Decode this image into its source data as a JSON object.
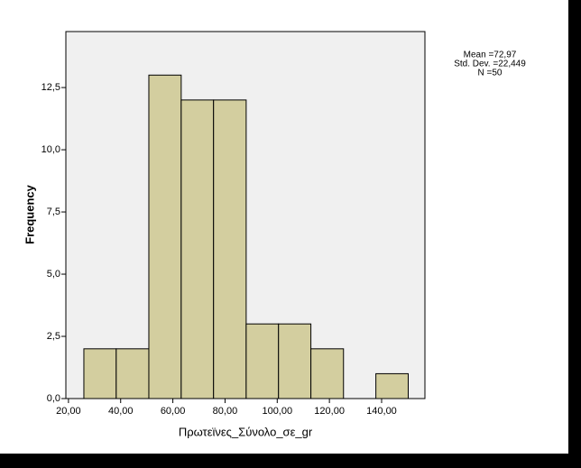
{
  "chart_data": {
    "type": "histogram",
    "x_label": "Πρωτεϊνες_Σύνολο_σε_gr",
    "y_label": "Frequency",
    "bins": [
      25.9,
      38.3,
      50.8,
      63.2,
      75.6,
      88.1,
      100.5,
      112.9,
      125.4,
      137.8,
      150.2
    ],
    "counts": [
      2,
      2,
      13,
      12,
      12,
      3,
      3,
      2,
      0,
      1
    ],
    "color": "#d3ce9f",
    "plot_background": "#f0f0f0",
    "xlim": [
      19,
      156.6
    ],
    "xticks": [
      {
        "value": 20,
        "label": "20,00"
      },
      {
        "value": 40,
        "label": "40,00"
      },
      {
        "value": 60,
        "label": "60,00"
      },
      {
        "value": 80,
        "label": "80,00"
      },
      {
        "value": 100,
        "label": "100,00"
      },
      {
        "value": 120,
        "label": "120,00"
      },
      {
        "value": 140,
        "label": "140,00"
      }
    ],
    "ylim": [
      0,
      14.75
    ],
    "yticks": [
      {
        "value": 0,
        "label": "0,0"
      },
      {
        "value": 2.5,
        "label": "2,5"
      },
      {
        "value": 5,
        "label": "5,0"
      },
      {
        "value": 7.5,
        "label": "7,5"
      },
      {
        "value": 10,
        "label": "10,0"
      },
      {
        "value": 12.5,
        "label": "12,5"
      }
    ],
    "stats": [
      "Mean =72,97",
      "Std. Dev. =22,449",
      "N =50"
    ]
  }
}
